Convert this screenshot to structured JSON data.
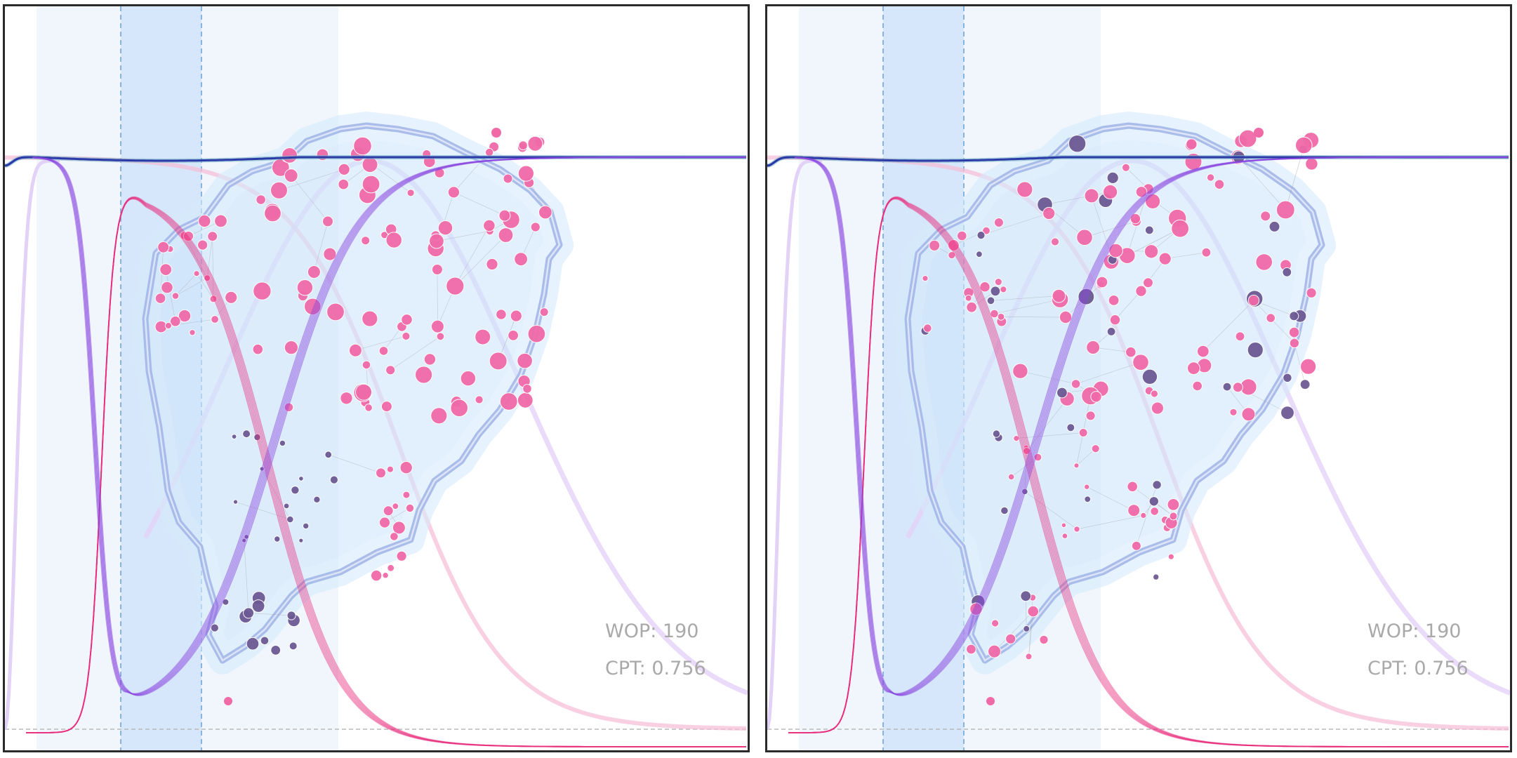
{
  "panels": [
    {
      "wop_text": "WOP: 190",
      "cpt_text": "CPT: 0.756"
    },
    {
      "wop_text": "WOP: 190",
      "cpt_text": "CPT: 0.756"
    }
  ],
  "colors": {
    "magenta_curve": "#e8287a",
    "purple_curve": "#8a46e0",
    "top_line": "#2b3aa8",
    "node_pink": "#f06aa8",
    "node_purple": "#6d5a94",
    "hull_outline": "#9fb4e6",
    "hull_fill": "#cfe6fb",
    "band": "#d4e5fb",
    "band_light": "#eef4fd"
  }
}
